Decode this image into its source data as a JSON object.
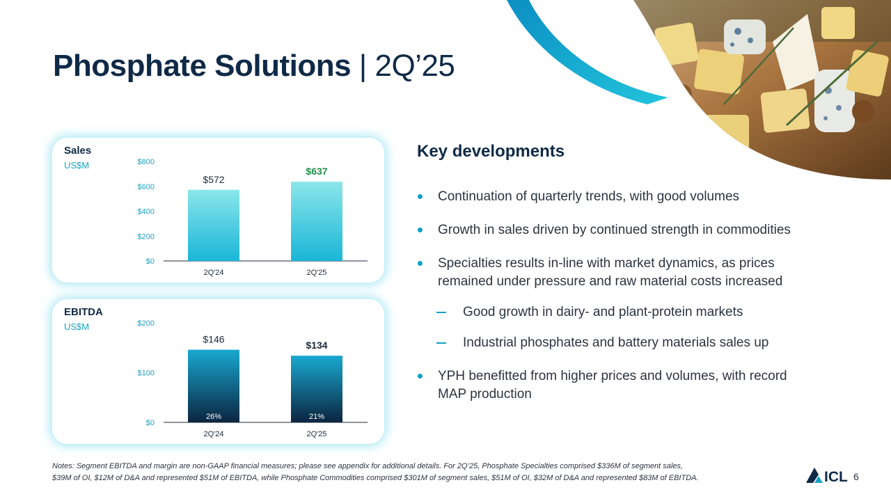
{
  "title": {
    "bold": "Phosphate Solutions",
    "sep": " | ",
    "light": "2Q’25"
  },
  "colors": {
    "navy": "#0f2a47",
    "accent": "#0d9fc7",
    "green": "#1f8f4a",
    "sales_bar_top": "#8ae6ea",
    "sales_bar_bottom": "#1ab6d8",
    "ebitda_bar_top": "#19a8d0",
    "ebitda_bar_bottom": "#0b2540"
  },
  "sales_card": {
    "title": "Sales",
    "unit": "US$M"
  },
  "ebitda_card": {
    "title": "EBITDA",
    "unit": "US$M"
  },
  "chart_data": [
    {
      "type": "bar",
      "title": "Sales",
      "ylabel": "US$M",
      "categories": [
        "2Q'24",
        "2Q'25"
      ],
      "values": [
        572,
        637
      ],
      "value_labels": [
        "$572",
        "$637"
      ],
      "highlight_last": true,
      "ylim": [
        0,
        800
      ],
      "yticks": [
        0,
        200,
        400,
        600,
        800
      ],
      "ytick_labels": [
        "$0",
        "$200",
        "$400",
        "$600",
        "$800"
      ]
    },
    {
      "type": "bar",
      "title": "EBITDA",
      "ylabel": "US$M",
      "categories": [
        "2Q'24",
        "2Q'25"
      ],
      "values": [
        146,
        134
      ],
      "value_labels": [
        "$146",
        "$134"
      ],
      "inner_labels": [
        "26%",
        "21%"
      ],
      "highlight_last": true,
      "ylim": [
        0,
        200
      ],
      "yticks": [
        0,
        100,
        200
      ],
      "ytick_labels": [
        "$0",
        "$100",
        "$200"
      ]
    }
  ],
  "key_developments": {
    "heading": "Key developments",
    "b1": "Continuation of quarterly trends, with good volumes",
    "b2": "Growth in sales driven by continued strength in commodities",
    "b3_l1": "Specialties results in-line with market dynamics, as prices",
    "b3_l2": "remained under pressure and raw material costs increased",
    "s1": "Good growth in dairy- and plant-protein markets",
    "s2": "Industrial phosphates and battery materials sales up",
    "b4_l1": "YPH benefitted from higher prices and volumes, with record",
    "b4_l2": "MAP production"
  },
  "notes": {
    "l1": "Notes: Segment EBITDA and margin are non-GAAP financial measures; please see appendix for additional details. For 2Q’25, Phosphate Specialties comprised $336M of segment sales,",
    "l2": "$39M of OI, $12M of D&A and represented $51M of EBITDA, while Phosphate Commodities comprised $301M of segment sales, $51M of OI, $32M of D&A and represented $83M of EBITDA."
  },
  "logo_text": "ICL",
  "page_number": "6"
}
